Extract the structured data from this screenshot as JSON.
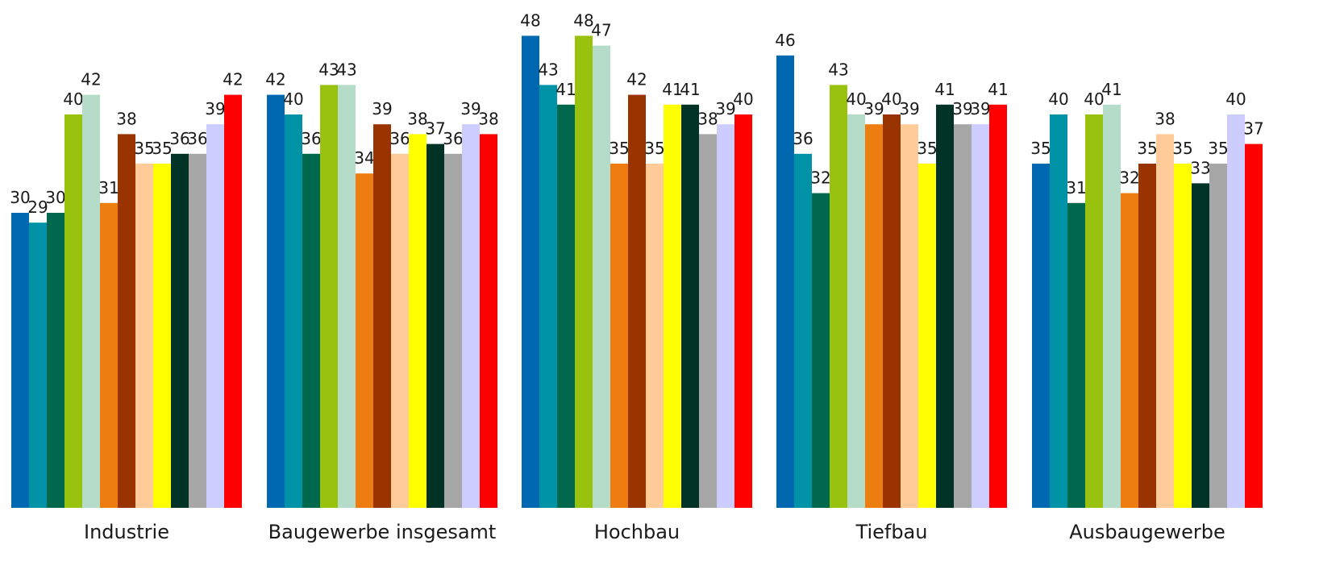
{
  "chart_data": {
    "type": "bar",
    "categories": [
      "Industrie",
      "Baugewerbe insgesamt",
      "Hochbau",
      "Tiefbau",
      "Ausbaugewerbe"
    ],
    "ylim": [
      0,
      48
    ],
    "grid": false,
    "legend": "none",
    "series": [
      {
        "color": "#0068b0",
        "values": [
          30,
          42,
          48,
          46,
          35
        ]
      },
      {
        "color": "#0093a8",
        "values": [
          29,
          40,
          43,
          36,
          40
        ]
      },
      {
        "color": "#00684c",
        "values": [
          30,
          36,
          41,
          32,
          31
        ]
      },
      {
        "color": "#99c20e",
        "values": [
          40,
          43,
          48,
          43,
          40
        ]
      },
      {
        "color": "#b4dcc8",
        "values": [
          42,
          43,
          47,
          40,
          41
        ]
      },
      {
        "color": "#ee7d11",
        "values": [
          31,
          34,
          35,
          39,
          32
        ]
      },
      {
        "color": "#993300",
        "values": [
          38,
          39,
          42,
          40,
          35
        ]
      },
      {
        "color": "#ffcc99",
        "values": [
          35,
          36,
          35,
          39,
          38
        ]
      },
      {
        "color": "#ffff00",
        "values": [
          35,
          38,
          41,
          35,
          35
        ]
      },
      {
        "color": "#003326",
        "values": [
          36,
          37,
          41,
          41,
          33
        ]
      },
      {
        "color": "#a6a6a6",
        "values": [
          36,
          36,
          38,
          39,
          35
        ]
      },
      {
        "color": "#ccccff",
        "values": [
          39,
          39,
          39,
          39,
          40
        ]
      },
      {
        "color": "#ff0000",
        "values": [
          42,
          38,
          40,
          41,
          37
        ]
      }
    ]
  }
}
